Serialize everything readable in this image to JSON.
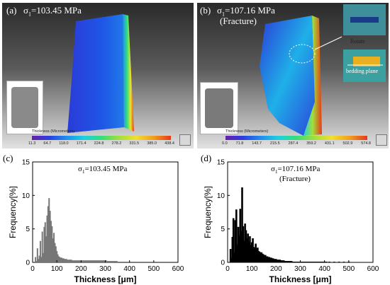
{
  "panels": {
    "a": {
      "label": "(a)",
      "stress": "σ",
      "stress_sub": "1",
      "stress_value": "=103.45 MPa",
      "colorbar_title": "Thickness (Micrometers)",
      "colorbar_ticks": [
        "11.3",
        "64.7",
        "118.0",
        "171.4",
        "224.8",
        "278.2",
        "331.5",
        "385.0",
        "438.4"
      ]
    },
    "b": {
      "label": "(b)",
      "stress": "σ",
      "stress_sub": "1",
      "stress_value": "=107.16 MPa",
      "stress_note": "(Fracture)",
      "callout_top": "Rotate",
      "callout_bottom": "bedding plane",
      "colorbar_title": "Thickness (Micrometers)",
      "colorbar_ticks": [
        "0.0",
        "71.8",
        "143.7",
        "215.5",
        "287.4",
        "359.2",
        "431.1",
        "502.9",
        "574.8"
      ]
    },
    "c": {
      "label": "(c)",
      "title_sigma": "σ",
      "title_sub": "1",
      "title_value": "=103.45 MPa"
    },
    "d": {
      "label": "(d)",
      "title_sigma": "σ",
      "title_sub": "1",
      "title_value": "=107.16 MPa",
      "title_note": "(Fracture)"
    }
  },
  "colors": {
    "hist_c": "#777777",
    "hist_d": "#000000",
    "panel_bg_top": "#2a2a2a",
    "panel_bg_bottom": "#e2e2e2",
    "callout_ellipse": "#ffffff"
  },
  "chart_data": [
    {
      "type": "bar",
      "panel": "c",
      "title": "σ1=103.45 MPa",
      "xlabel": "Thickness [μm]",
      "ylabel": "Frequency[%]",
      "xlim": [
        0,
        600
      ],
      "ylim": [
        0,
        15
      ],
      "xticks": [
        "0",
        "100",
        "200",
        "300",
        "400",
        "500",
        "600"
      ],
      "yticks": [
        "0",
        "5",
        "10",
        "15"
      ],
      "bin_width": 4,
      "x": [
        12,
        16,
        20,
        24,
        28,
        32,
        36,
        40,
        44,
        48,
        52,
        56,
        60,
        64,
        68,
        72,
        76,
        80,
        84,
        88,
        92,
        96,
        100,
        104,
        108,
        112,
        116,
        120,
        124,
        128,
        132,
        136,
        140,
        144,
        148,
        152,
        156,
        160,
        164,
        168,
        172,
        176,
        180,
        184,
        188,
        192,
        196,
        200,
        204,
        208,
        212,
        216,
        220,
        224,
        228,
        232,
        236,
        240,
        244,
        248,
        252,
        256,
        260,
        264,
        268,
        272,
        276,
        280,
        284,
        288,
        292,
        296,
        300,
        304,
        308,
        312,
        316,
        320,
        324,
        328,
        332,
        336,
        340,
        344,
        348,
        352,
        356,
        360,
        364,
        368,
        372,
        376,
        380,
        384,
        388,
        392,
        396,
        400,
        404,
        408
      ],
      "values": [
        0.8,
        0.2,
        2.1,
        0.5,
        1.0,
        3.2,
        0.8,
        4.6,
        1.4,
        5.3,
        6.0,
        3.9,
        7.0,
        8.4,
        9.6,
        7.7,
        6.2,
        5.4,
        3.6,
        4.4,
        2.9,
        2.4,
        1.7,
        1.2,
        0.9,
        0.8,
        0.7,
        0.7,
        0.6,
        0.6,
        0.5,
        0.5,
        0.5,
        0.4,
        0.4,
        0.4,
        0.4,
        0.4,
        0.3,
        0.3,
        0.3,
        0.3,
        0.3,
        0.3,
        0.3,
        0.3,
        0.3,
        0.3,
        0.3,
        0.3,
        0.3,
        0.3,
        0.3,
        0.3,
        0.3,
        0.3,
        0.3,
        0.3,
        0.3,
        0.3,
        0.3,
        0.3,
        0.3,
        0.3,
        0.3,
        0.3,
        0.3,
        0.3,
        0.3,
        0.3,
        0.3,
        0.3,
        0.3,
        0.3,
        0.2,
        0.2,
        0.2,
        0.2,
        0.2,
        0.2,
        0.2,
        0.2,
        0.2,
        0.2,
        0.2,
        0.1,
        0.1,
        0.1,
        0.1,
        0.1,
        0.1,
        0.1,
        0.1,
        0.1,
        0.1,
        0.1,
        0.1,
        0.1,
        0.1,
        0.1
      ]
    },
    {
      "type": "bar",
      "panel": "d",
      "title": "σ1=107.16 MPa (Fracture)",
      "xlabel": "Thickness [μm]",
      "ylabel": "Frequency[%]",
      "xlim": [
        0,
        600
      ],
      "ylim": [
        0,
        15
      ],
      "xticks": [
        "0",
        "100",
        "200",
        "300",
        "400",
        "500",
        "600"
      ],
      "yticks": [
        "0",
        "5",
        "10",
        "15"
      ],
      "bin_width": 4,
      "x": [
        12,
        16,
        20,
        24,
        28,
        32,
        36,
        40,
        44,
        48,
        52,
        56,
        60,
        64,
        68,
        72,
        76,
        80,
        84,
        88,
        92,
        96,
        100,
        104,
        108,
        112,
        116,
        120,
        124,
        128,
        132,
        136,
        140,
        144,
        148,
        152,
        156,
        160,
        164,
        168,
        172,
        176,
        180,
        184,
        188,
        192,
        196,
        200,
        204,
        208,
        212,
        216,
        220,
        224,
        228,
        232,
        236,
        240,
        244,
        248,
        252,
        256,
        260,
        264,
        268,
        272,
        276,
        280,
        284,
        288,
        292,
        296,
        300,
        304,
        308,
        312,
        316,
        320,
        324,
        328,
        332,
        336,
        340,
        344,
        348,
        352,
        356,
        360,
        364,
        368,
        372,
        376,
        380,
        384,
        388,
        392,
        396,
        400,
        404,
        408,
        420,
        440,
        460,
        480,
        500
      ],
      "values": [
        2.0,
        0.6,
        3.8,
        6.6,
        1.5,
        6.3,
        7.9,
        2.7,
        5.3,
        4.0,
        8.0,
        4.7,
        11.2,
        5.4,
        3.2,
        5.8,
        4.8,
        3.6,
        4.3,
        3.1,
        3.9,
        2.6,
        3.0,
        3.6,
        2.3,
        2.1,
        2.8,
        1.9,
        2.2,
        1.7,
        1.6,
        1.4,
        1.5,
        1.3,
        1.2,
        1.0,
        1.1,
        0.9,
        0.9,
        0.8,
        0.8,
        0.7,
        0.7,
        0.6,
        0.6,
        0.5,
        0.5,
        0.5,
        0.4,
        0.4,
        0.4,
        0.4,
        0.3,
        0.3,
        0.3,
        0.3,
        0.2,
        0.2,
        0.2,
        0.2,
        0.2,
        0.2,
        0.2,
        0.2,
        0.1,
        0.1,
        0.1,
        0.1,
        0.1,
        0.1,
        0.1,
        0.1,
        0.1,
        0.1,
        0.1,
        0.1,
        0.1,
        0.1,
        0.1,
        0.1,
        0.1,
        0.1,
        0.1,
        0.1,
        0.1,
        0.1,
        0.1,
        0.1,
        0.1,
        0.1,
        0.1,
        0.1,
        0.1,
        0.1,
        0.1,
        0.1,
        0.1,
        0.1,
        0.1,
        0.1,
        0.1,
        0.1,
        0.1,
        0.1,
        0.1
      ]
    }
  ]
}
